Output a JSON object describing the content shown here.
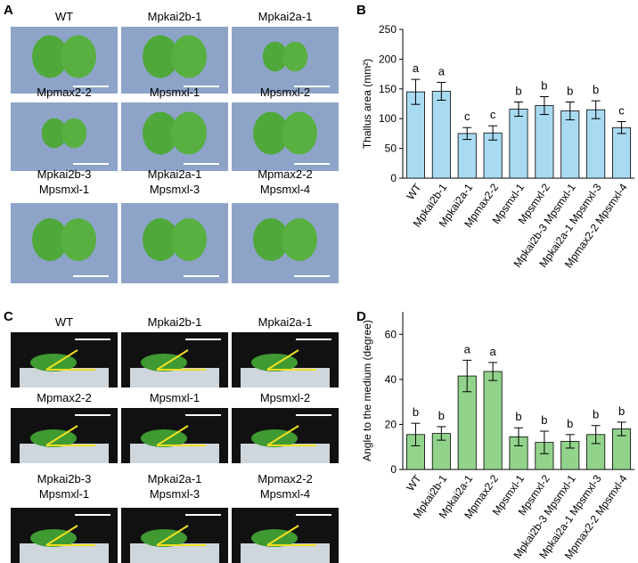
{
  "panel_a": {
    "label": "A",
    "photos": [
      [
        "WT"
      ],
      [
        "Mpkai2b-1"
      ],
      [
        "Mpkai2a-1"
      ],
      [
        "Mpmax2-2"
      ],
      [
        "Mpsmxl-1"
      ],
      [
        "Mpsmxl-2"
      ],
      [
        "Mpkai2b-3",
        "Mpsmxl-1"
      ],
      [
        "Mpkai2a-1",
        "Mpsmxl-3"
      ],
      [
        "Mpmax2-2",
        "Mpsmxl-4"
      ]
    ]
  },
  "panel_c": {
    "label": "C",
    "photos": [
      [
        "WT"
      ],
      [
        "Mpkai2b-1"
      ],
      [
        "Mpkai2a-1"
      ],
      [
        "Mpmax2-2"
      ],
      [
        "Mpsmxl-1"
      ],
      [
        "Mpsmxl-2"
      ],
      [
        "Mpkai2b-3",
        "Mpsmxl-1"
      ],
      [
        "Mpkai2a-1",
        "Mpsmxl-3"
      ],
      [
        "Mpmax2-2",
        "Mpsmxl-4"
      ]
    ]
  },
  "chart_data": [
    {
      "type": "bar",
      "panel": "B",
      "ylabel": "Thallus area (mm²)",
      "color": "#a8daf2",
      "categories": [
        "WT",
        "Mpkai2b-1",
        "Mpkai2a-1",
        "Mpmax2-2",
        "Mpsmxl-1",
        "Mpsmxl-2",
        "Mpkai2b-3 Mpsmxl-1",
        "Mpkai2a-1 Mpsmxl-3",
        "Mpmax2-2 Mpsmxl-4"
      ],
      "values": [
        145,
        146,
        75,
        76,
        116,
        122,
        113,
        115,
        85
      ],
      "errors": [
        21,
        15,
        10,
        12,
        12,
        15,
        15,
        15,
        10
      ],
      "letters": [
        "a",
        "a",
        "c",
        "c",
        "b",
        "b",
        "b",
        "b",
        "c"
      ],
      "ylim": [
        0,
        250
      ],
      "yticks": [
        0,
        50,
        100,
        150,
        200,
        250
      ]
    },
    {
      "type": "bar",
      "panel": "D",
      "ylabel": "Angle to the medium (degree)",
      "color": "#92d38c",
      "categories": [
        "WT",
        "Mpkai2b-1",
        "Mpkai2a-1",
        "Mpmax2-2",
        "Mpsmxl-1",
        "Mpsmxl-2",
        "Mpkai2b-3 Mpsmxl-1",
        "Mpkai2a-1 Mpsmxl-3",
        "Mpmax2-2 Mpsmxl-4"
      ],
      "values": [
        15.5,
        16,
        41.5,
        43.5,
        14.5,
        12,
        12.5,
        15.5,
        18
      ],
      "errors": [
        5,
        3,
        7,
        4,
        4,
        5,
        3,
        4,
        3
      ],
      "letters": [
        "b",
        "b",
        "a",
        "a",
        "b",
        "b",
        "b",
        "b",
        "b"
      ],
      "ylim": [
        0,
        70
      ],
      "yticks": [
        0,
        20,
        40,
        60
      ]
    }
  ]
}
